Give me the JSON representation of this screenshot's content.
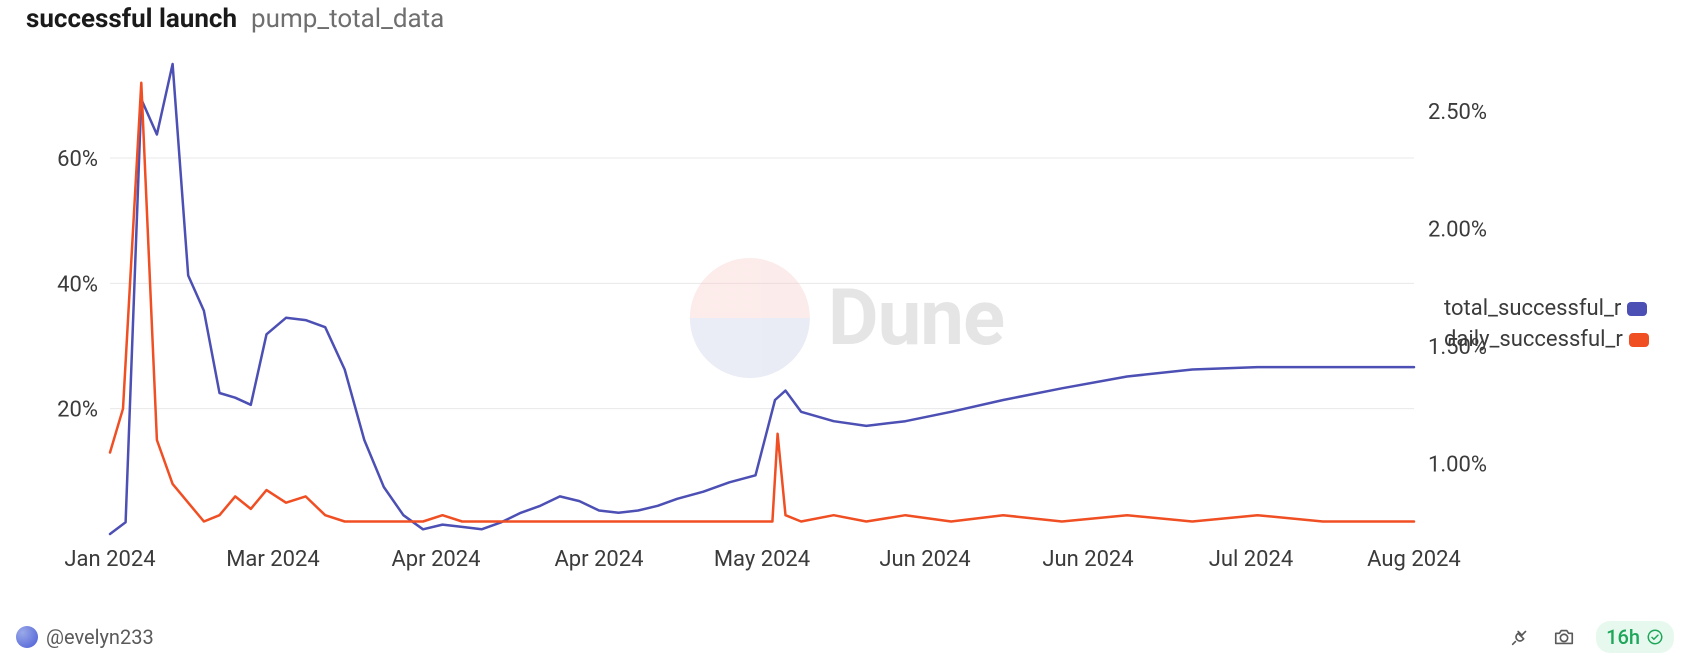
{
  "header": {
    "title": "successful launch",
    "subtitle": "pump_total_data"
  },
  "watermark": {
    "text": "Dune"
  },
  "chart": {
    "type": "line",
    "background_color": "#ffffff",
    "grid_color": "#e8e8e8",
    "line_width": 2.5,
    "x": {
      "labels": [
        "Jan 2024",
        "Mar 2024",
        "Apr 2024",
        "Apr 2024",
        "May 2024",
        "Jun 2024",
        "Jun 2024",
        "Jul 2024",
        "Aug 2024"
      ],
      "positions": [
        0.0,
        0.125,
        0.25,
        0.375,
        0.5,
        0.625,
        0.75,
        0.875,
        1.0
      ],
      "fontsize": 22
    },
    "y_left": {
      "min": 0,
      "max": 75,
      "ticks": [
        20,
        40,
        60
      ],
      "format_suffix": "%",
      "fontsize": 22
    },
    "y_right": {
      "min": 0.7,
      "max": 2.7,
      "ticks": [
        1.0,
        1.5,
        2.0,
        2.5
      ],
      "format_suffix": "%",
      "decimals": 2,
      "fontsize": 22
    },
    "series": [
      {
        "name": "total_successful_r",
        "yaxis": "right",
        "color": "#4c4fb3",
        "points": [
          [
            0.0,
            0.7
          ],
          [
            0.012,
            0.75
          ],
          [
            0.024,
            2.55
          ],
          [
            0.036,
            2.4
          ],
          [
            0.048,
            2.7
          ],
          [
            0.06,
            1.8
          ],
          [
            0.072,
            1.65
          ],
          [
            0.084,
            1.3
          ],
          [
            0.096,
            1.28
          ],
          [
            0.108,
            1.25
          ],
          [
            0.12,
            1.55
          ],
          [
            0.135,
            1.62
          ],
          [
            0.15,
            1.61
          ],
          [
            0.165,
            1.58
          ],
          [
            0.18,
            1.4
          ],
          [
            0.195,
            1.1
          ],
          [
            0.21,
            0.9
          ],
          [
            0.225,
            0.78
          ],
          [
            0.24,
            0.72
          ],
          [
            0.255,
            0.74
          ],
          [
            0.27,
            0.73
          ],
          [
            0.285,
            0.72
          ],
          [
            0.3,
            0.75
          ],
          [
            0.315,
            0.79
          ],
          [
            0.33,
            0.82
          ],
          [
            0.345,
            0.86
          ],
          [
            0.36,
            0.84
          ],
          [
            0.375,
            0.8
          ],
          [
            0.39,
            0.79
          ],
          [
            0.405,
            0.8
          ],
          [
            0.42,
            0.82
          ],
          [
            0.435,
            0.85
          ],
          [
            0.455,
            0.88
          ],
          [
            0.475,
            0.92
          ],
          [
            0.495,
            0.95
          ],
          [
            0.51,
            1.27
          ],
          [
            0.518,
            1.31
          ],
          [
            0.53,
            1.22
          ],
          [
            0.555,
            1.18
          ],
          [
            0.58,
            1.16
          ],
          [
            0.61,
            1.18
          ],
          [
            0.645,
            1.22
          ],
          [
            0.685,
            1.27
          ],
          [
            0.73,
            1.32
          ],
          [
            0.78,
            1.37
          ],
          [
            0.83,
            1.4
          ],
          [
            0.88,
            1.41
          ],
          [
            0.93,
            1.41
          ],
          [
            0.97,
            1.41
          ],
          [
            1.0,
            1.41
          ]
        ]
      },
      {
        "name": "daily_successful_r",
        "yaxis": "left",
        "color": "#f04e23",
        "points": [
          [
            0.0,
            13
          ],
          [
            0.01,
            20
          ],
          [
            0.024,
            72
          ],
          [
            0.036,
            15
          ],
          [
            0.048,
            8
          ],
          [
            0.06,
            5
          ],
          [
            0.072,
            2
          ],
          [
            0.084,
            3
          ],
          [
            0.096,
            6
          ],
          [
            0.108,
            4
          ],
          [
            0.12,
            7
          ],
          [
            0.135,
            5
          ],
          [
            0.15,
            6
          ],
          [
            0.165,
            3
          ],
          [
            0.18,
            2
          ],
          [
            0.195,
            2
          ],
          [
            0.21,
            2
          ],
          [
            0.225,
            2
          ],
          [
            0.24,
            2
          ],
          [
            0.255,
            3
          ],
          [
            0.27,
            2
          ],
          [
            0.285,
            2
          ],
          [
            0.3,
            2
          ],
          [
            0.315,
            2
          ],
          [
            0.33,
            2
          ],
          [
            0.345,
            2
          ],
          [
            0.36,
            2
          ],
          [
            0.375,
            2
          ],
          [
            0.39,
            2
          ],
          [
            0.405,
            2
          ],
          [
            0.42,
            2
          ],
          [
            0.435,
            2
          ],
          [
            0.455,
            2
          ],
          [
            0.475,
            2
          ],
          [
            0.495,
            2
          ],
          [
            0.508,
            2
          ],
          [
            0.512,
            16
          ],
          [
            0.518,
            3
          ],
          [
            0.53,
            2
          ],
          [
            0.555,
            3
          ],
          [
            0.58,
            2
          ],
          [
            0.61,
            3
          ],
          [
            0.645,
            2
          ],
          [
            0.685,
            3
          ],
          [
            0.73,
            2
          ],
          [
            0.78,
            3
          ],
          [
            0.83,
            2
          ],
          [
            0.88,
            3
          ],
          [
            0.93,
            2
          ],
          [
            0.97,
            2
          ],
          [
            1.0,
            2
          ]
        ]
      }
    ],
    "legend": {
      "position": "right",
      "fontsize": 22,
      "items": [
        {
          "label": "total_successful_r",
          "color": "#4c4fb3"
        },
        {
          "label": "daily_successful_r",
          "color": "#f04e23"
        }
      ]
    }
  },
  "footer": {
    "author_handle": "@evelyn233",
    "refresh_age": "16h"
  }
}
